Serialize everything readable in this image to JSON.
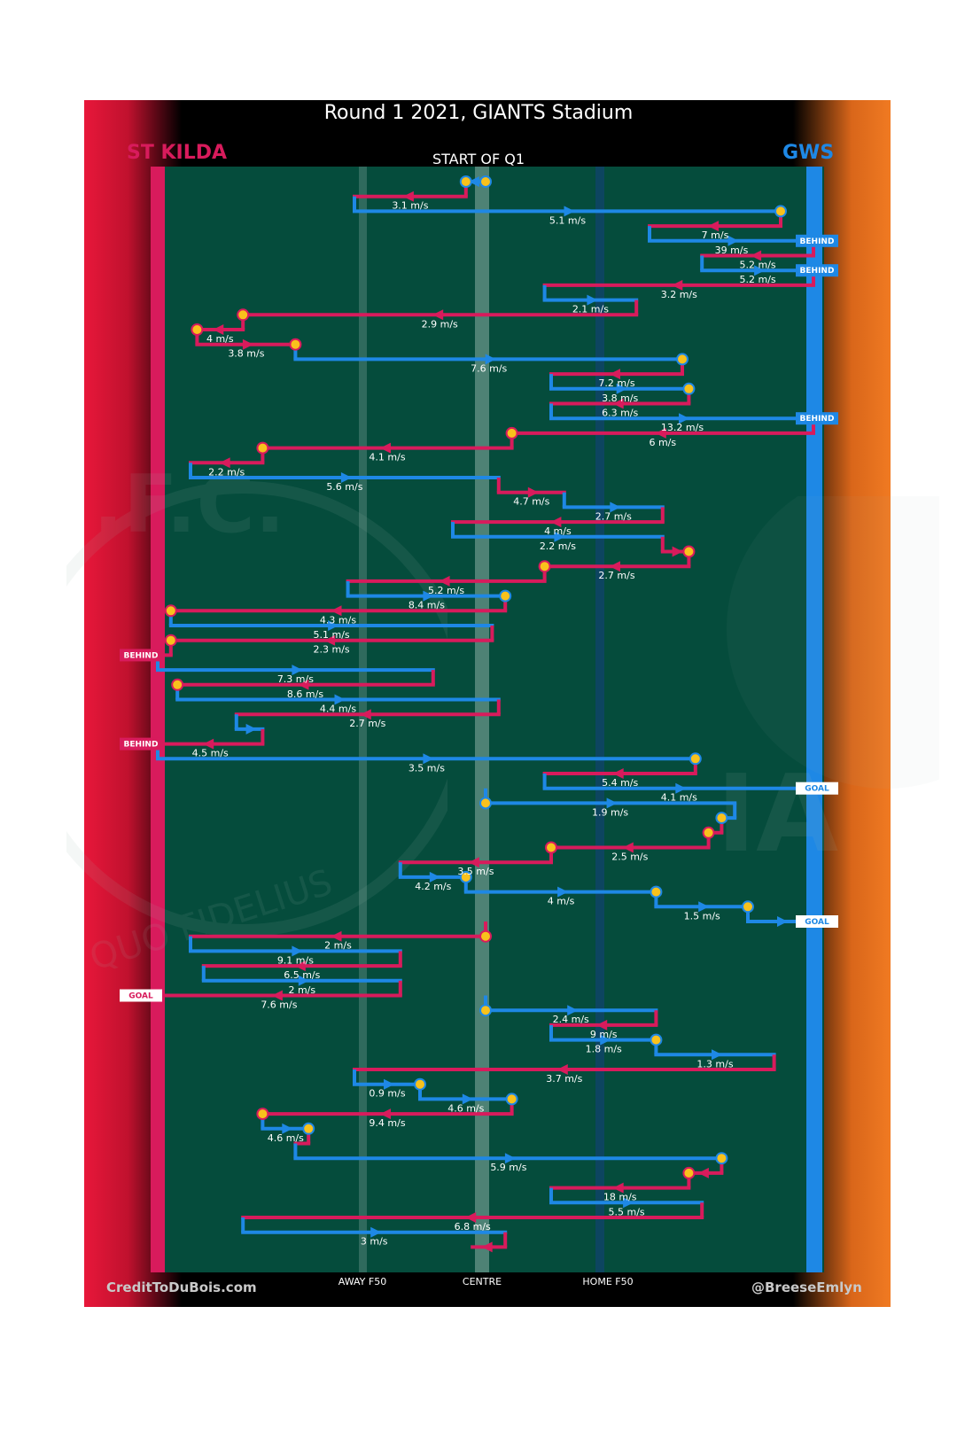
{
  "header": {
    "title": "Round 1 2021, GIANTS Stadium",
    "subtitle": "START OF Q1"
  },
  "teams": {
    "left": {
      "name": "ST KILDA",
      "color": "#d81b5c"
    },
    "right": {
      "name": "GWS",
      "color": "#1e88e5"
    }
  },
  "footer": {
    "left": "CreditToDuBois.com",
    "right": "@BreeseEmlyn"
  },
  "watermark": {
    "left_text": "QUO FIDELIUS",
    "left_initials": ".F.C.",
    "right_text": "GIA"
  },
  "colors": {
    "field": "#054c3c",
    "stkilda": "#d81b5c",
    "gws": "#1e88e5",
    "node": "#f9c11c"
  },
  "chart_data": {
    "type": "line",
    "x_axis": {
      "min": 0,
      "max": 100,
      "tick_labels": [
        "AWAY F50",
        "CENTRE",
        "HOME F50"
      ],
      "tick_positions": [
        30,
        50,
        70
      ]
    },
    "chains": [
      {
        "from": 50,
        "to": 47,
        "team": "gws",
        "label": "",
        "start_node": true,
        "end_node": true,
        "outcome": ""
      },
      {
        "from": 47,
        "to": 30,
        "team": "stk",
        "label": "3.1 m/s",
        "start_node": false,
        "end_node": false,
        "outcome": ""
      },
      {
        "from": 30,
        "to": 95,
        "team": "gws",
        "label": "5.1 m/s",
        "start_node": false,
        "end_node": true,
        "outcome": ""
      },
      {
        "from": 95,
        "to": 75,
        "team": "stk",
        "label": "7 m/s",
        "start_node": false,
        "end_node": false,
        "outcome": ""
      },
      {
        "from": 75,
        "to": 100,
        "team": "gws",
        "label": "39 m/s",
        "start_node": false,
        "end_node": false,
        "outcome": "BEHIND"
      },
      {
        "from": 100,
        "to": 83,
        "team": "stk",
        "label": "5.2 m/s",
        "start_node": false,
        "end_node": false,
        "outcome": ""
      },
      {
        "from": 83,
        "to": 100,
        "team": "gws",
        "label": "5.2 m/s",
        "start_node": false,
        "end_node": false,
        "outcome": "BEHIND"
      },
      {
        "from": 100,
        "to": 59,
        "team": "stk",
        "label": "3.2 m/s",
        "start_node": false,
        "end_node": false,
        "outcome": ""
      },
      {
        "from": 59,
        "to": 73,
        "team": "gws",
        "label": "2.1 m/s",
        "start_node": false,
        "end_node": false,
        "outcome": ""
      },
      {
        "from": 73,
        "to": 13,
        "team": "stk",
        "label": "2.9 m/s",
        "start_node": false,
        "end_node": true,
        "outcome": ""
      },
      {
        "from": 13,
        "to": 6,
        "team": "stk",
        "label": "4 m/s",
        "start_node": false,
        "end_node": true,
        "outcome": ""
      },
      {
        "from": 6,
        "to": 21,
        "team": "stk",
        "label": "3.8 m/s",
        "start_node": false,
        "end_node": true,
        "outcome": ""
      },
      {
        "from": 21,
        "to": 80,
        "team": "gws",
        "label": "7.6 m/s",
        "start_node": false,
        "end_node": true,
        "outcome": ""
      },
      {
        "from": 80,
        "to": 60,
        "team": "stk",
        "label": "7.2 m/s",
        "start_node": false,
        "end_node": false,
        "outcome": ""
      },
      {
        "from": 60,
        "to": 81,
        "team": "gws",
        "label": "3.8 m/s",
        "start_node": false,
        "end_node": true,
        "outcome": ""
      },
      {
        "from": 81,
        "to": 60,
        "team": "stk",
        "label": "6.3 m/s",
        "start_node": false,
        "end_node": false,
        "outcome": ""
      },
      {
        "from": 60,
        "to": 100,
        "team": "gws",
        "label": "13.2 m/s",
        "start_node": false,
        "end_node": false,
        "outcome": "BEHIND"
      },
      {
        "from": 100,
        "to": 54,
        "team": "stk",
        "label": "6 m/s",
        "start_node": false,
        "end_node": true,
        "outcome": ""
      },
      {
        "from": 54,
        "to": 16,
        "team": "stk",
        "label": "4.1 m/s",
        "start_node": false,
        "end_node": true,
        "outcome": ""
      },
      {
        "from": 16,
        "to": 5,
        "team": "stk",
        "label": "2.2 m/s",
        "start_node": false,
        "end_node": false,
        "outcome": ""
      },
      {
        "from": 5,
        "to": 52,
        "team": "gws",
        "label": "5.6 m/s",
        "start_node": false,
        "end_node": false,
        "outcome": ""
      },
      {
        "from": 52,
        "to": 62,
        "team": "stk",
        "label": "4.7 m/s",
        "start_node": false,
        "end_node": false,
        "outcome": ""
      },
      {
        "from": 62,
        "to": 77,
        "team": "gws",
        "label": "2.7 m/s",
        "start_node": false,
        "end_node": false,
        "outcome": ""
      },
      {
        "from": 77,
        "to": 45,
        "team": "stk",
        "label": "4 m/s",
        "start_node": false,
        "end_node": false,
        "outcome": ""
      },
      {
        "from": 45,
        "to": 77,
        "team": "gws",
        "label": "2.2 m/s",
        "start_node": false,
        "end_node": false,
        "outcome": ""
      },
      {
        "from": 77,
        "to": 81,
        "team": "stk",
        "label": "",
        "start_node": false,
        "end_node": true,
        "outcome": ""
      },
      {
        "from": 81,
        "to": 59,
        "team": "stk",
        "label": "2.7 m/s",
        "start_node": false,
        "end_node": true,
        "outcome": ""
      },
      {
        "from": 59,
        "to": 29,
        "team": "stk",
        "label": "5.2 m/s",
        "start_node": false,
        "end_node": false,
        "outcome": ""
      },
      {
        "from": 29,
        "to": 53,
        "team": "gws",
        "label": "8.4 m/s",
        "start_node": false,
        "end_node": true,
        "outcome": ""
      },
      {
        "from": 53,
        "to": 2,
        "team": "stk",
        "label": "4.3 m/s",
        "start_node": false,
        "end_node": true,
        "outcome": ""
      },
      {
        "from": 2,
        "to": 51,
        "team": "gws",
        "label": "5.1 m/s",
        "start_node": false,
        "end_node": false,
        "outcome": ""
      },
      {
        "from": 51,
        "to": 2,
        "team": "stk",
        "label": "2.3 m/s",
        "start_node": false,
        "end_node": true,
        "outcome": ""
      },
      {
        "from": 2,
        "to": 0,
        "team": "stk",
        "label": "",
        "start_node": false,
        "end_node": false,
        "outcome": "BEHIND"
      },
      {
        "from": 0,
        "to": 42,
        "team": "gws",
        "label": "7.3 m/s",
        "start_node": false,
        "end_node": false,
        "outcome": ""
      },
      {
        "from": 42,
        "to": 3,
        "team": "stk",
        "label": "8.6 m/s",
        "start_node": false,
        "end_node": true,
        "outcome": ""
      },
      {
        "from": 3,
        "to": 52,
        "team": "gws",
        "label": "4.4 m/s",
        "start_node": false,
        "end_node": false,
        "outcome": ""
      },
      {
        "from": 52,
        "to": 12,
        "team": "stk",
        "label": "2.7 m/s",
        "start_node": false,
        "end_node": false,
        "outcome": ""
      },
      {
        "from": 12,
        "to": 16,
        "team": "gws",
        "label": "",
        "start_node": false,
        "end_node": false,
        "outcome": ""
      },
      {
        "from": 16,
        "to": 0,
        "team": "stk",
        "label": "4.5 m/s",
        "start_node": false,
        "end_node": false,
        "outcome": "BEHIND"
      },
      {
        "from": 0,
        "to": 82,
        "team": "gws",
        "label": "3.5 m/s",
        "start_node": false,
        "end_node": true,
        "outcome": ""
      },
      {
        "from": 82,
        "to": 59,
        "team": "stk",
        "label": "5.4 m/s",
        "start_node": false,
        "end_node": false,
        "outcome": ""
      },
      {
        "from": 59,
        "to": 100,
        "team": "gws",
        "label": "4.1 m/s",
        "start_node": false,
        "end_node": false,
        "outcome": "GOAL"
      },
      {
        "from": 50,
        "to": 88,
        "team": "gws",
        "label": "1.9 m/s",
        "start_node": true,
        "end_node": false,
        "outcome": ""
      },
      {
        "from": 88,
        "to": 86,
        "team": "gws",
        "label": "",
        "start_node": false,
        "end_node": true,
        "outcome": ""
      },
      {
        "from": 86,
        "to": 84,
        "team": "stk",
        "label": "",
        "start_node": false,
        "end_node": true,
        "outcome": ""
      },
      {
        "from": 84,
        "to": 60,
        "team": "stk",
        "label": "2.5 m/s",
        "start_node": false,
        "end_node": true,
        "outcome": ""
      },
      {
        "from": 60,
        "to": 37,
        "team": "stk",
        "label": "3.5 m/s",
        "start_node": false,
        "end_node": false,
        "outcome": ""
      },
      {
        "from": 37,
        "to": 47,
        "team": "gws",
        "label": "4.2 m/s",
        "start_node": false,
        "end_node": true,
        "outcome": ""
      },
      {
        "from": 47,
        "to": 76,
        "team": "gws",
        "label": "4 m/s",
        "start_node": false,
        "end_node": true,
        "outcome": ""
      },
      {
        "from": 76,
        "to": 90,
        "team": "gws",
        "label": "1.5 m/s",
        "start_node": false,
        "end_node": true,
        "outcome": ""
      },
      {
        "from": 90,
        "to": 100,
        "team": "gws",
        "label": "",
        "start_node": false,
        "end_node": false,
        "outcome": "GOAL"
      },
      {
        "from": 50,
        "to": 5,
        "team": "stk",
        "label": "2 m/s",
        "start_node": true,
        "end_node": false,
        "outcome": ""
      },
      {
        "from": 5,
        "to": 37,
        "team": "gws",
        "label": "9.1 m/s",
        "start_node": false,
        "end_node": false,
        "outcome": ""
      },
      {
        "from": 37,
        "to": 7,
        "team": "stk",
        "label": "6.5 m/s",
        "start_node": false,
        "end_node": false,
        "outcome": ""
      },
      {
        "from": 7,
        "to": 37,
        "team": "gws",
        "label": "2 m/s",
        "start_node": false,
        "end_node": false,
        "outcome": ""
      },
      {
        "from": 37,
        "to": 0,
        "team": "stk",
        "label": "7.6 m/s",
        "start_node": false,
        "end_node": false,
        "outcome": "GOAL"
      },
      {
        "from": 50,
        "to": 76,
        "team": "gws",
        "label": "2.4 m/s",
        "start_node": true,
        "end_node": false,
        "outcome": ""
      },
      {
        "from": 76,
        "to": 60,
        "team": "stk",
        "label": "9 m/s",
        "start_node": false,
        "end_node": false,
        "outcome": ""
      },
      {
        "from": 60,
        "to": 76,
        "team": "gws",
        "label": "1.8 m/s",
        "start_node": false,
        "end_node": true,
        "outcome": ""
      },
      {
        "from": 76,
        "to": 94,
        "team": "gws",
        "label": "1.3 m/s",
        "start_node": false,
        "end_node": false,
        "outcome": ""
      },
      {
        "from": 94,
        "to": 30,
        "team": "stk",
        "label": "3.7 m/s",
        "start_node": false,
        "end_node": false,
        "outcome": ""
      },
      {
        "from": 30,
        "to": 40,
        "team": "gws",
        "label": "0.9 m/s",
        "start_node": false,
        "end_node": true,
        "outcome": ""
      },
      {
        "from": 40,
        "to": 54,
        "team": "gws",
        "label": "4.6 m/s",
        "start_node": false,
        "end_node": true,
        "outcome": ""
      },
      {
        "from": 54,
        "to": 16,
        "team": "stk",
        "label": "9.4 m/s",
        "start_node": false,
        "end_node": true,
        "outcome": ""
      },
      {
        "from": 16,
        "to": 23,
        "team": "gws",
        "label": "4.6 m/s",
        "start_node": false,
        "end_node": true,
        "outcome": ""
      },
      {
        "from": 23,
        "to": 21,
        "team": "stk",
        "label": "",
        "start_node": false,
        "end_node": false,
        "outcome": ""
      },
      {
        "from": 21,
        "to": 86,
        "team": "gws",
        "label": "5.9 m/s",
        "start_node": false,
        "end_node": true,
        "outcome": ""
      },
      {
        "from": 86,
        "to": 81,
        "team": "stk",
        "label": "",
        "start_node": false,
        "end_node": true,
        "outcome": ""
      },
      {
        "from": 81,
        "to": 60,
        "team": "stk",
        "label": "18 m/s",
        "start_node": false,
        "end_node": false,
        "outcome": ""
      },
      {
        "from": 60,
        "to": 83,
        "team": "gws",
        "label": "5.5 m/s",
        "start_node": false,
        "end_node": false,
        "outcome": ""
      },
      {
        "from": 83,
        "to": 13,
        "team": "stk",
        "label": "6.8 m/s",
        "start_node": false,
        "end_node": false,
        "outcome": ""
      },
      {
        "from": 13,
        "to": 53,
        "team": "gws",
        "label": "3 m/s",
        "start_node": false,
        "end_node": false,
        "outcome": ""
      },
      {
        "from": 53,
        "to": 48,
        "team": "stk",
        "label": "",
        "start_node": false,
        "end_node": false,
        "outcome": ""
      }
    ]
  }
}
